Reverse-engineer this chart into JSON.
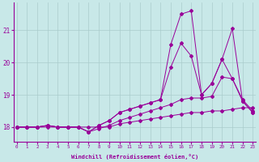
{
  "xlabel": "Windchill (Refroidissement éolien,°C)",
  "background_color": "#c8e8e8",
  "grid_color": "#aacccc",
  "line_color": "#990099",
  "x_ticks": [
    0,
    1,
    2,
    3,
    4,
    5,
    6,
    7,
    8,
    9,
    10,
    11,
    12,
    13,
    14,
    15,
    16,
    17,
    18,
    19,
    20,
    21,
    22,
    23
  ],
  "y_ticks": [
    18,
    19,
    20,
    21
  ],
  "xlim": [
    -0.3,
    23.3
  ],
  "ylim": [
    17.55,
    21.85
  ],
  "line1_x": [
    0,
    1,
    2,
    3,
    4,
    5,
    6,
    7,
    8,
    9,
    10,
    11,
    12,
    13,
    14,
    15,
    16,
    17,
    18,
    19,
    20,
    21,
    22,
    23
  ],
  "line1_y": [
    18.0,
    18.0,
    18.0,
    18.0,
    18.0,
    18.0,
    18.0,
    18.0,
    18.0,
    18.0,
    18.1,
    18.15,
    18.2,
    18.25,
    18.3,
    18.35,
    18.4,
    18.45,
    18.45,
    18.5,
    18.5,
    18.55,
    18.6,
    18.6
  ],
  "line2_x": [
    0,
    1,
    2,
    3,
    4,
    5,
    6,
    7,
    8,
    9,
    10,
    11,
    12,
    13,
    14,
    15,
    16,
    17,
    18,
    19,
    20,
    21,
    22,
    23
  ],
  "line2_y": [
    18.0,
    18.0,
    18.0,
    18.05,
    18.0,
    18.0,
    18.0,
    17.85,
    17.95,
    18.05,
    18.2,
    18.3,
    18.4,
    18.5,
    18.6,
    18.7,
    18.85,
    18.9,
    18.9,
    18.95,
    19.55,
    19.5,
    18.85,
    18.5
  ],
  "line3_x": [
    0,
    1,
    2,
    3,
    4,
    5,
    6,
    7,
    8,
    9,
    10,
    11,
    12,
    13,
    14,
    15,
    16,
    17,
    18,
    19,
    20,
    21,
    22,
    23
  ],
  "line3_y": [
    18.0,
    18.0,
    18.0,
    18.05,
    18.0,
    18.0,
    18.0,
    17.85,
    18.05,
    18.2,
    18.45,
    18.55,
    18.65,
    18.75,
    18.85,
    19.85,
    20.6,
    20.2,
    19.0,
    19.35,
    20.1,
    19.5,
    18.8,
    18.45
  ],
  "line4_x": [
    0,
    1,
    2,
    3,
    4,
    5,
    6,
    7,
    8,
    9,
    10,
    11,
    12,
    13,
    14,
    15,
    16,
    17,
    18,
    19,
    20,
    21,
    22,
    23
  ],
  "line4_y": [
    18.0,
    18.0,
    18.0,
    18.05,
    18.0,
    18.0,
    18.0,
    17.85,
    18.05,
    18.2,
    18.45,
    18.55,
    18.65,
    18.75,
    18.85,
    20.55,
    21.5,
    21.6,
    19.0,
    19.35,
    20.1,
    21.05,
    18.8,
    18.45
  ]
}
